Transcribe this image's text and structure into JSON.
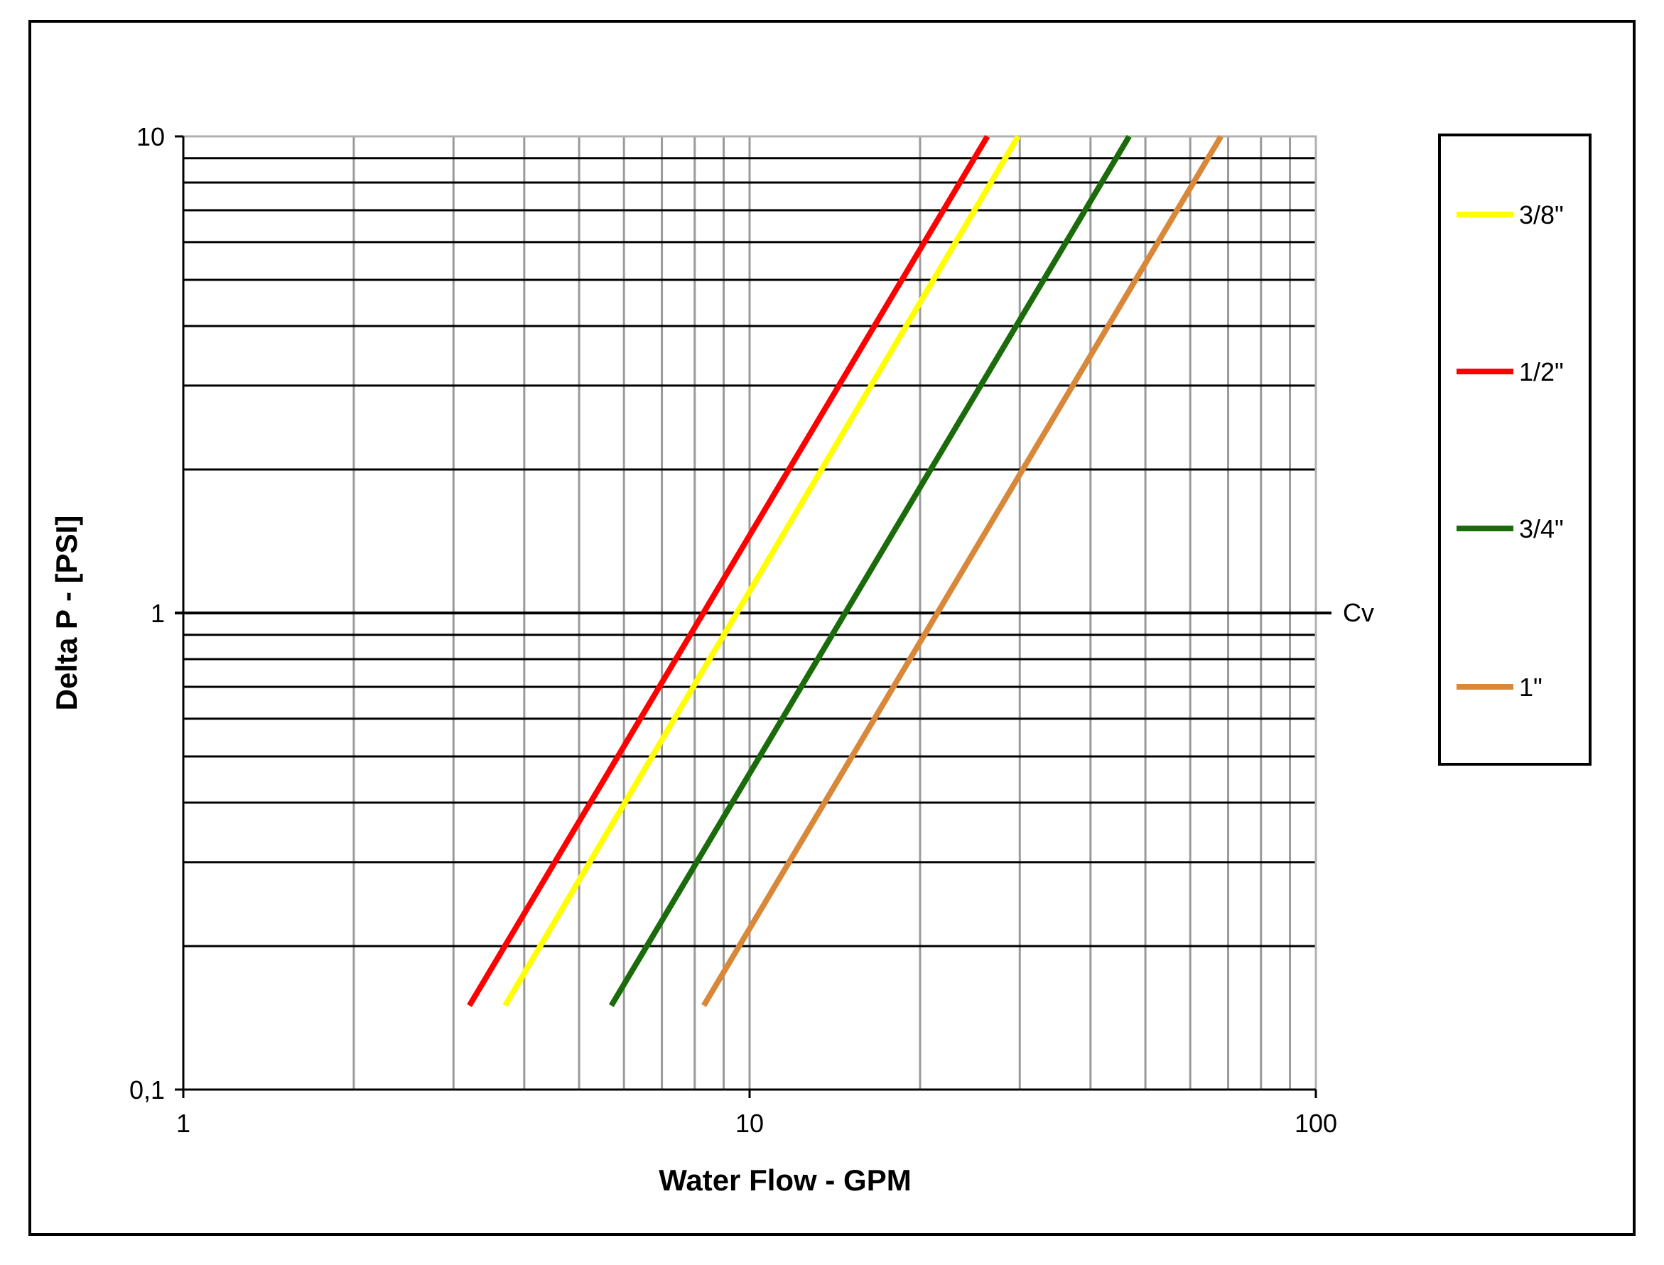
{
  "chart_data": {
    "type": "line",
    "xlabel": "Water Flow  - GPM",
    "ylabel": "Delta P - [PSI]",
    "x_scale": "log",
    "y_scale": "log",
    "xlim": [
      1,
      100
    ],
    "ylim": [
      0.1,
      10
    ],
    "x_ticks": [
      {
        "value": 1,
        "label": "1"
      },
      {
        "value": 10,
        "label": "10"
      },
      {
        "value": 100,
        "label": "100"
      }
    ],
    "y_ticks": [
      {
        "value": 0.1,
        "label": "0,1"
      },
      {
        "value": 1,
        "label": "1"
      },
      {
        "value": 10,
        "label": "10"
      }
    ],
    "reference_line": {
      "y": 1,
      "label": "Cv"
    },
    "grid": true,
    "legend": {
      "placement": "right"
    },
    "series": [
      {
        "name": "3/8\"",
        "color": "#ffff00",
        "x": [
          3.7,
          29.8
        ],
        "y": [
          0.15,
          10
        ]
      },
      {
        "name": "1/2\"",
        "color": "#ff0000",
        "x": [
          3.2,
          26.3
        ],
        "y": [
          0.15,
          10
        ]
      },
      {
        "name": "3/4\"",
        "color": "#1a6b0a",
        "x": [
          5.7,
          46.8
        ],
        "y": [
          0.15,
          10
        ]
      },
      {
        "name": "1\"",
        "color": "#d9883a",
        "x": [
          8.3,
          68.0
        ],
        "y": [
          0.15,
          10
        ]
      }
    ]
  }
}
